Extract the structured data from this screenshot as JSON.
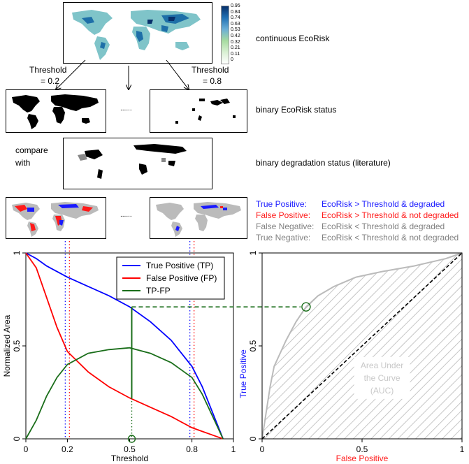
{
  "top": {
    "colorbar_ticks": [
      "0.95",
      "0.84",
      "0.74",
      "0.63",
      "0.53",
      "0.42",
      "0.32",
      "0.21",
      "0.11",
      "0"
    ],
    "label_continuous": "continuous EcoRisk",
    "threshold_left": [
      "Threshold",
      "= 0.2"
    ],
    "threshold_right": [
      "Threshold",
      "= 0.8"
    ],
    "ellipsis": "......",
    "label_binary_ecorisk": "binary EcoRisk status",
    "compare_with": [
      "compare",
      "with"
    ],
    "label_binary_degradation": "binary degradation status (literature)"
  },
  "classes": [
    {
      "key": "True Positive:",
      "desc": "EcoRisk > Threshold & degraded",
      "color": "#1a1aff"
    },
    {
      "key": "False Positive:",
      "desc": "EcoRisk > Threshold & not degraded",
      "color": "#ff1a1a"
    },
    {
      "key": "False Negative:",
      "desc": "EcoRisk < Threshold & degraded",
      "color": "#808080"
    },
    {
      "key": "True Negative:",
      "desc": "EcoRisk < Threshold & not degraded",
      "color": "#808080"
    }
  ],
  "chart_data": [
    {
      "type": "line",
      "xlabel": "Threshold",
      "ylabel": "Normalized Area",
      "xlim": [
        0,
        1
      ],
      "ylim": [
        0,
        1
      ],
      "xticks": [
        "0",
        "0.2",
        "0.5",
        "0.8",
        "1"
      ],
      "xtick_values": [
        0,
        0.2,
        0.5,
        0.8,
        1
      ],
      "yticks": [
        "0",
        "0.5",
        "1"
      ],
      "ytick_values": [
        0,
        0.5,
        1
      ],
      "legend_position": "top-right",
      "series": [
        {
          "name": "True Positive (TP)",
          "color": "#0000ff",
          "x": [
            0,
            0.05,
            0.1,
            0.15,
            0.2,
            0.3,
            0.4,
            0.5,
            0.6,
            0.7,
            0.8,
            0.85,
            0.9,
            0.95
          ],
          "y": [
            1.0,
            0.97,
            0.93,
            0.9,
            0.87,
            0.82,
            0.77,
            0.71,
            0.63,
            0.53,
            0.39,
            0.28,
            0.14,
            0.0
          ]
        },
        {
          "name": "False Positive (FP)",
          "color": "#ff0000",
          "x": [
            0,
            0.05,
            0.1,
            0.15,
            0.2,
            0.3,
            0.4,
            0.5,
            0.6,
            0.7,
            0.8,
            0.85,
            0.9,
            0.95
          ],
          "y": [
            1.0,
            0.92,
            0.76,
            0.6,
            0.47,
            0.36,
            0.28,
            0.22,
            0.17,
            0.12,
            0.06,
            0.04,
            0.02,
            0.0
          ]
        },
        {
          "name": "TP-FP",
          "color": "#1a6e1a",
          "x": [
            0,
            0.05,
            0.1,
            0.15,
            0.2,
            0.3,
            0.4,
            0.5,
            0.6,
            0.7,
            0.8,
            0.85,
            0.9,
            0.95
          ],
          "y": [
            0.0,
            0.1,
            0.23,
            0.33,
            0.4,
            0.46,
            0.48,
            0.49,
            0.46,
            0.41,
            0.33,
            0.24,
            0.12,
            0.0
          ]
        }
      ],
      "markers": {
        "threshold_lines": [
          0.2,
          0.8
        ],
        "optimum_threshold": 0.51,
        "optimum_tp": 0.71,
        "optimum_fp": 0.22
      }
    },
    {
      "type": "line",
      "xlabel": "False Positive",
      "ylabel": "True Positive",
      "xlim": [
        0,
        1
      ],
      "ylim": [
        0,
        1
      ],
      "xticks": [
        "0",
        "0.5",
        "1"
      ],
      "xtick_values": [
        0,
        0.5,
        1
      ],
      "yticks": [
        "0",
        "0.5",
        "1"
      ],
      "ytick_values": [
        0,
        0.5,
        1
      ],
      "auc_label": [
        "Area Under",
        "the Curve",
        "(AUC)"
      ],
      "series": [
        {
          "name": "",
          "color": "#bbbbbb",
          "x": [
            0,
            0.02,
            0.04,
            0.06,
            0.12,
            0.17,
            0.22,
            0.28,
            0.36,
            0.47,
            0.6,
            0.76,
            0.92,
            1.0
          ],
          "y": [
            0,
            0.14,
            0.28,
            0.39,
            0.53,
            0.63,
            0.71,
            0.77,
            0.82,
            0.87,
            0.9,
            0.93,
            0.97,
            1.0
          ]
        }
      ],
      "optimum_point": {
        "x": 0.22,
        "y": 0.71
      }
    }
  ]
}
